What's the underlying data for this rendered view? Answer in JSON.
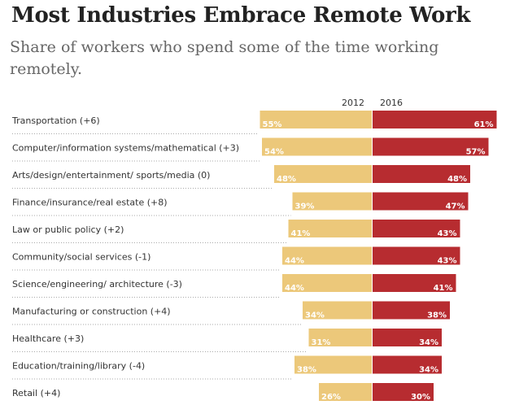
{
  "title": "Most Industries Embrace Remote Work",
  "subtitle": "Share of workers who spend some of the time working remotely.",
  "colors": {
    "series_2012": "#ecc87a",
    "series_2016": "#b72c30"
  },
  "chart_data": {
    "type": "bar",
    "orientation": "horizontal-diverging",
    "title": "Most Industries Embrace Remote Work",
    "subtitle": "Share of workers who spend some of the time working remotely.",
    "categories": [
      "Transportation (+6)",
      "Computer/information systems/mathematical (+3)",
      "Arts/design/entertainment/ sports/media (0)",
      "Finance/insurance/real estate (+8)",
      "Law or public policy (+2)",
      "Community/social services (-1)",
      "Science/engineering/ architecture (-3)",
      "Manufacturing or construction (+4)",
      "Healthcare (+3)",
      "Education/training/library (-4)",
      "Retail (+4)"
    ],
    "series": [
      {
        "name": "2012",
        "values": [
          55,
          54,
          48,
          39,
          41,
          44,
          44,
          34,
          31,
          38,
          26
        ],
        "labels": [
          "55%",
          "54%",
          "48%",
          "39%",
          "41%",
          "44%",
          "44%",
          "34%",
          "31%",
          "38%",
          "26%"
        ]
      },
      {
        "name": "2016",
        "values": [
          61,
          57,
          48,
          47,
          43,
          43,
          41,
          38,
          34,
          34,
          30
        ],
        "labels": [
          "61%",
          "57%",
          "48%",
          "47%",
          "43%",
          "43%",
          "41%",
          "38%",
          "34%",
          "34%",
          "30%"
        ]
      }
    ],
    "xlabel": "",
    "ylabel": "",
    "grid": false,
    "legend": "column headers above bars"
  }
}
